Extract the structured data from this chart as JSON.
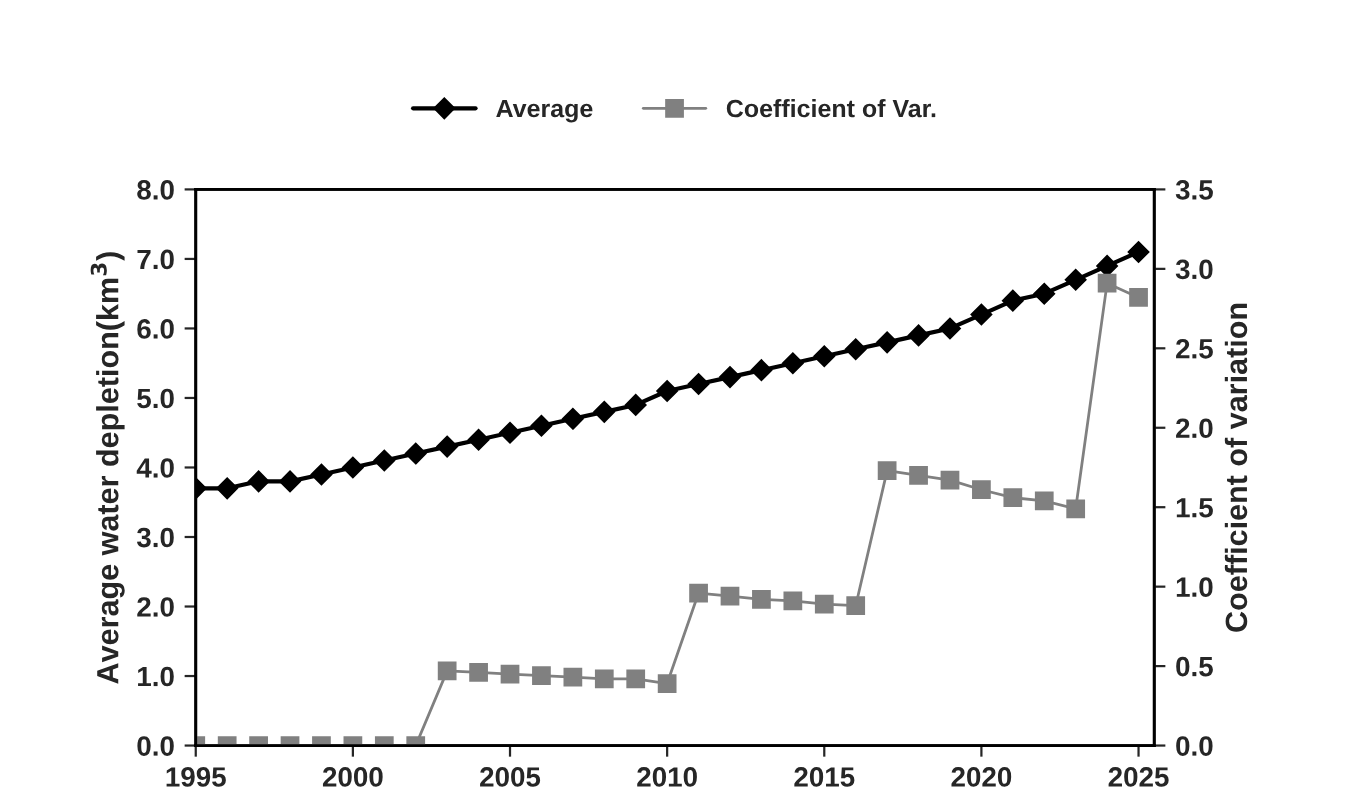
{
  "chart_data": {
    "type": "line",
    "x": [
      1995,
      1996,
      1997,
      1998,
      1999,
      2000,
      2001,
      2002,
      2003,
      2004,
      2005,
      2006,
      2007,
      2008,
      2009,
      2010,
      2011,
      2012,
      2013,
      2014,
      2015,
      2016,
      2017,
      2018,
      2019,
      2020,
      2021,
      2022,
      2023,
      2024,
      2025
    ],
    "series": [
      {
        "name": "Average",
        "color": "#000000",
        "marker": "diamond",
        "values": [
          3.7,
          3.7,
          3.8,
          3.8,
          3.9,
          4.0,
          4.1,
          4.2,
          4.3,
          4.4,
          4.5,
          4.6,
          4.7,
          4.8,
          4.9,
          5.1,
          5.2,
          5.3,
          5.4,
          5.5,
          5.6,
          5.7,
          5.8,
          5.9,
          6.0,
          6.2,
          6.4,
          6.5,
          6.7,
          6.9,
          7.1
        ]
      },
      {
        "name": "Coefficient of Var.",
        "color": "#808080",
        "marker": "square",
        "axis": "y2",
        "values": [
          0,
          0,
          0,
          0,
          0,
          0,
          0,
          0,
          0.47,
          0.46,
          0.45,
          0.44,
          0.43,
          0.42,
          0.42,
          0.39,
          0.96,
          0.94,
          0.92,
          0.91,
          0.89,
          0.88,
          1.73,
          1.7,
          1.67,
          1.61,
          1.56,
          1.54,
          1.49,
          2.91,
          2.82
        ]
      }
    ],
    "ylabel": "Average water depletion(km$^{3}$)",
    "y2label": "Coefficient of variation",
    "xlim": [
      1995,
      2025.5
    ],
    "xticks": [
      1995,
      2000,
      2005,
      2010,
      2015,
      2020,
      2025
    ],
    "ylim": [
      0,
      8
    ],
    "yticks": [
      {
        "value": 0,
        "label": "0.0"
      },
      {
        "value": 1,
        "label": "1.0"
      },
      {
        "value": 2,
        "label": "2.0"
      },
      {
        "value": 3,
        "label": "3.0"
      },
      {
        "value": 4,
        "label": "4.0"
      },
      {
        "value": 5,
        "label": "5.0"
      },
      {
        "value": 6,
        "label": "6.0"
      },
      {
        "value": 7,
        "label": "7.0"
      },
      {
        "value": 8,
        "label": "8.0"
      }
    ],
    "y2lim": [
      0,
      3.5
    ],
    "y2ticks": [
      {
        "value": 0,
        "label": "0.0"
      },
      {
        "value": 0.5,
        "label": "0.5"
      },
      {
        "value": 1,
        "label": "1.0"
      },
      {
        "value": 1.5,
        "label": "1.5"
      },
      {
        "value": 2,
        "label": "2.0"
      },
      {
        "value": 2.5,
        "label": "2.5"
      },
      {
        "value": 3,
        "label": "3.0"
      },
      {
        "value": 3.5,
        "label": "3.5"
      }
    ],
    "legend": "top",
    "grid": false,
    "line_style": "solid"
  }
}
